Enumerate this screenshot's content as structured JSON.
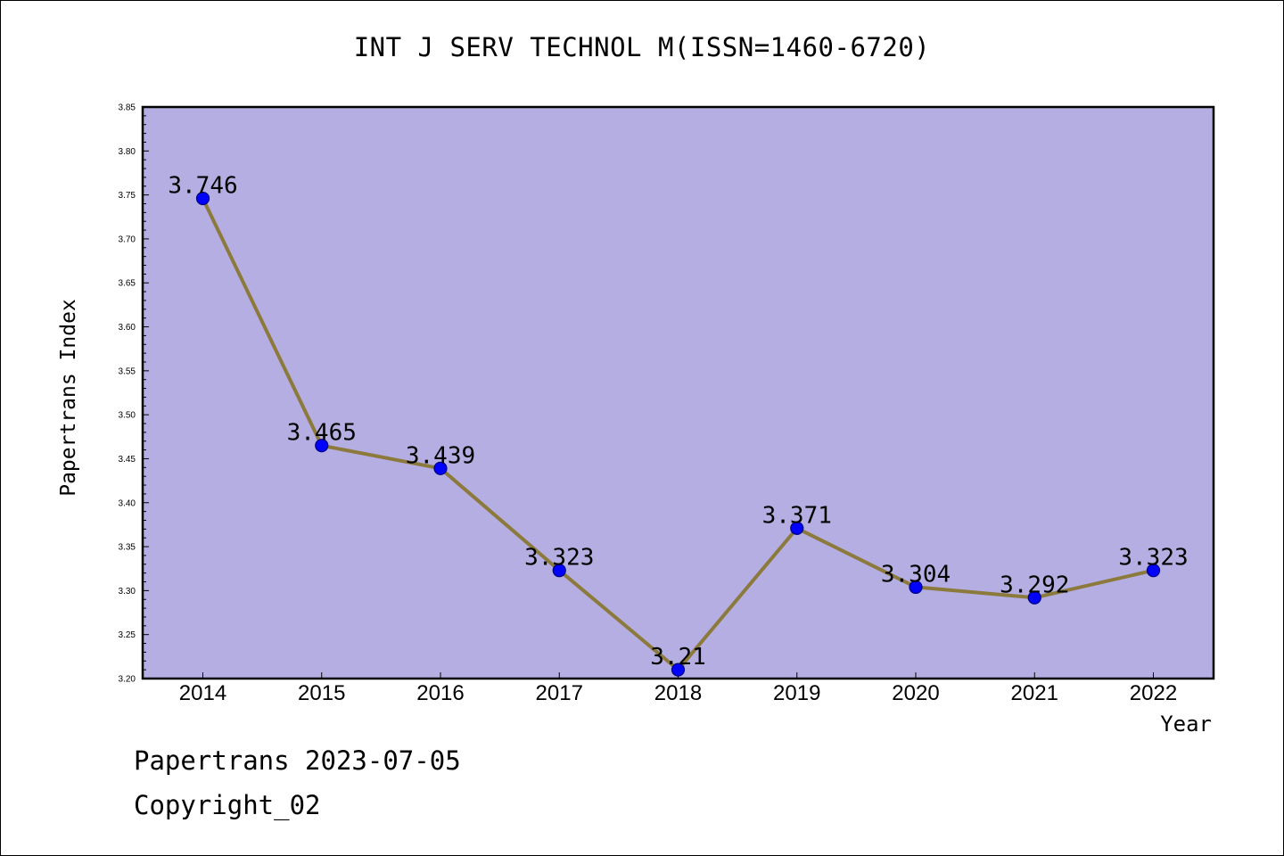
{
  "footer": {
    "line1": "Papertrans 2023-07-05",
    "line2": "Copyright_02"
  },
  "chart_data": {
    "type": "line",
    "title": "INT J SERV TECHNOL M(ISSN=1460-6720)",
    "xlabel": "Year",
    "ylabel": "Papertrans Index",
    "categories": [
      "2014",
      "2015",
      "2016",
      "2017",
      "2018",
      "2019",
      "2020",
      "2021",
      "2022"
    ],
    "series": [
      {
        "values": [
          3.746,
          3.465,
          3.439,
          3.323,
          3.21,
          3.371,
          3.304,
          3.292,
          3.323
        ],
        "data_labels": [
          "3.746",
          "3.465",
          "3.439",
          "3.323",
          "3.21",
          "3.371",
          "3.304",
          "3.292",
          "3.323"
        ]
      }
    ],
    "ylim": [
      3.2,
      3.85
    ],
    "y_ticks": [
      "3.20",
      "3.25",
      "3.30",
      "3.35",
      "3.40",
      "3.45",
      "3.50",
      "3.55",
      "3.60",
      "3.65",
      "3.70",
      "3.75",
      "3.80",
      "3.85"
    ],
    "grid": false,
    "legend": "none",
    "colors": {
      "plot_background": "#b4aee2",
      "line": "#8c7a3c",
      "marker_fill": "#0000ff",
      "marker_stroke": "#000080",
      "axis": "#000000"
    }
  }
}
